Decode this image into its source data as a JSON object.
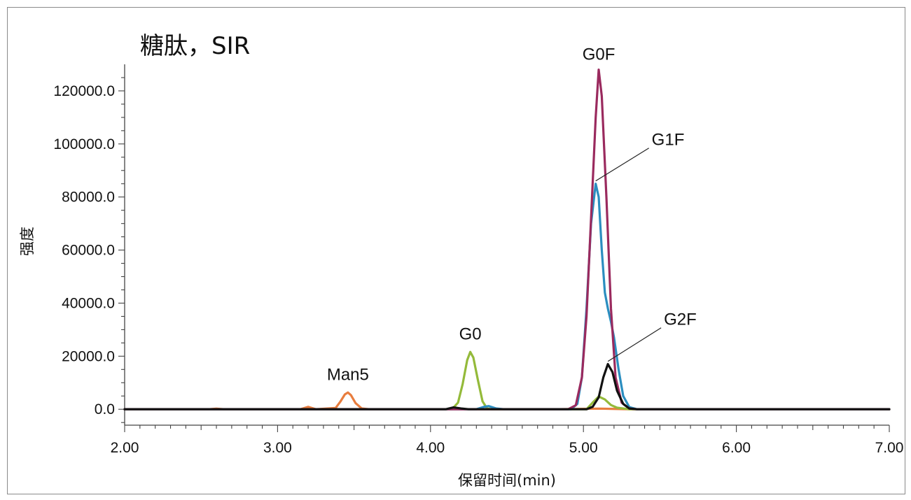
{
  "chart_data": {
    "type": "line",
    "title": "糖肽，SIR",
    "xlabel": "保留时间(min)",
    "ylabel": "强度",
    "xlim": [
      2.0,
      7.0
    ],
    "ylim": [
      -6000,
      130000
    ],
    "x_ticks": [
      2.0,
      3.0,
      4.0,
      5.0,
      6.0,
      7.0
    ],
    "x_tick_labels": [
      "2.00",
      "3.00",
      "4.00",
      "5.00",
      "6.00",
      "7.00"
    ],
    "y_ticks": [
      0,
      20000,
      40000,
      60000,
      80000,
      100000,
      120000
    ],
    "y_tick_labels": [
      "0.0",
      "20000.0",
      "40000.0",
      "60000.0",
      "80000.0",
      "100000.0",
      "120000.0"
    ],
    "grid": false,
    "legend": "none",
    "series": [
      {
        "name": "Man5",
        "color": "#e87d3e",
        "points": [
          [
            2.0,
            0
          ],
          [
            2.55,
            0
          ],
          [
            2.6,
            250
          ],
          [
            2.65,
            0
          ],
          [
            3.15,
            0
          ],
          [
            3.2,
            900
          ],
          [
            3.25,
            0
          ],
          [
            3.38,
            500
          ],
          [
            3.41,
            2800
          ],
          [
            3.44,
            5600
          ],
          [
            3.46,
            6300
          ],
          [
            3.48,
            5300
          ],
          [
            3.51,
            2300
          ],
          [
            3.55,
            300
          ],
          [
            3.6,
            0
          ],
          [
            4.8,
            0
          ],
          [
            5.1,
            250
          ],
          [
            5.3,
            0
          ],
          [
            7.0,
            0
          ]
        ]
      },
      {
        "name": "G0",
        "color": "#94ba3a",
        "points": [
          [
            2.0,
            0
          ],
          [
            4.14,
            0
          ],
          [
            4.18,
            2500
          ],
          [
            4.21,
            9500
          ],
          [
            4.24,
            18500
          ],
          [
            4.26,
            21600
          ],
          [
            4.28,
            19500
          ],
          [
            4.31,
            11000
          ],
          [
            4.34,
            3000
          ],
          [
            4.37,
            300
          ],
          [
            4.4,
            0
          ],
          [
            5.02,
            0
          ],
          [
            5.06,
            2500
          ],
          [
            5.1,
            4800
          ],
          [
            5.14,
            3700
          ],
          [
            5.18,
            1600
          ],
          [
            5.22,
            600
          ],
          [
            5.3,
            0
          ],
          [
            7.0,
            0
          ]
        ]
      },
      {
        "name": "G0F",
        "color": "#9a2a5e",
        "points": [
          [
            2.0,
            0
          ],
          [
            4.9,
            0
          ],
          [
            4.95,
            1500
          ],
          [
            4.99,
            12000
          ],
          [
            5.02,
            35000
          ],
          [
            5.05,
            72000
          ],
          [
            5.08,
            110000
          ],
          [
            5.1,
            128000
          ],
          [
            5.12,
            118000
          ],
          [
            5.15,
            80000
          ],
          [
            5.18,
            38000
          ],
          [
            5.21,
            12000
          ],
          [
            5.25,
            2500
          ],
          [
            5.3,
            300
          ],
          [
            5.35,
            0
          ],
          [
            7.0,
            0
          ]
        ]
      },
      {
        "name": "G1F",
        "color": "#2b8ec0",
        "points": [
          [
            2.0,
            0
          ],
          [
            4.3,
            0
          ],
          [
            4.35,
            900
          ],
          [
            4.38,
            1200
          ],
          [
            4.43,
            300
          ],
          [
            4.48,
            0
          ],
          [
            4.92,
            0
          ],
          [
            4.96,
            2000
          ],
          [
            4.99,
            12000
          ],
          [
            5.02,
            38000
          ],
          [
            5.05,
            70000
          ],
          [
            5.08,
            85000
          ],
          [
            5.1,
            80000
          ],
          [
            5.12,
            60000
          ],
          [
            5.14,
            44000
          ],
          [
            5.16,
            38000
          ],
          [
            5.18,
            33000
          ],
          [
            5.2,
            27000
          ],
          [
            5.23,
            15000
          ],
          [
            5.26,
            5000
          ],
          [
            5.3,
            800
          ],
          [
            5.35,
            0
          ],
          [
            7.0,
            0
          ]
        ]
      },
      {
        "name": "G2F",
        "color": "#111111",
        "points": [
          [
            2.0,
            0
          ],
          [
            4.1,
            0
          ],
          [
            4.15,
            700
          ],
          [
            4.2,
            300
          ],
          [
            4.25,
            0
          ],
          [
            5.02,
            0
          ],
          [
            5.06,
            900
          ],
          [
            5.1,
            4500
          ],
          [
            5.13,
            12000
          ],
          [
            5.16,
            17000
          ],
          [
            5.19,
            14000
          ],
          [
            5.22,
            7000
          ],
          [
            5.26,
            2000
          ],
          [
            5.3,
            300
          ],
          [
            5.35,
            0
          ],
          [
            7.0,
            0
          ]
        ]
      }
    ],
    "annotations": [
      {
        "text": "Man5",
        "x": 3.46,
        "y": 6300
      },
      {
        "text": "G0",
        "x": 4.26,
        "y": 21600
      },
      {
        "text": "G0F",
        "x": 5.1,
        "y": 128000
      },
      {
        "text": "G1F",
        "x": 5.08,
        "y": 85000
      },
      {
        "text": "G2F",
        "x": 5.16,
        "y": 17000
      }
    ]
  }
}
